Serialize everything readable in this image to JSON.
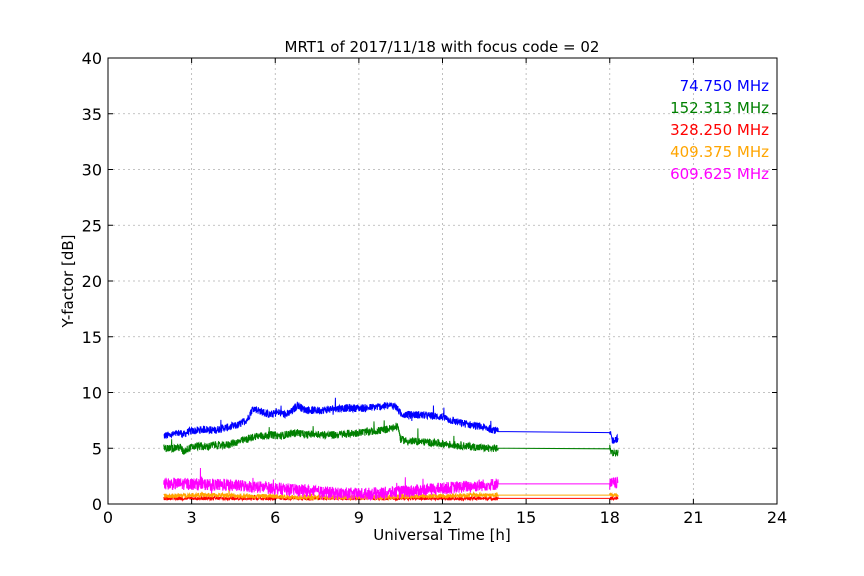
{
  "chart_data": {
    "type": "line",
    "title": "MRT1 of 2017/11/18 with focus code = 02",
    "xlabel": "Universal Time [h]",
    "ylabel": "Y-factor [dB]",
    "xlim": [
      0,
      24
    ],
    "ylim": [
      0,
      40
    ],
    "xticks": [
      0,
      3,
      6,
      9,
      12,
      15,
      18,
      21,
      24
    ],
    "yticks": [
      0,
      5,
      10,
      15,
      20,
      25,
      30,
      35,
      40
    ],
    "grid": true,
    "legend_position": "top-right",
    "series": [
      {
        "name": "74.750 MHz",
        "color": "#0000ff",
        "points": [
          [
            2.0,
            6.1
          ],
          [
            2.3,
            6.2
          ],
          [
            2.6,
            6.4
          ],
          [
            2.7,
            6.2
          ],
          [
            2.9,
            6.5
          ],
          [
            3.2,
            6.6
          ],
          [
            3.5,
            6.7
          ],
          [
            3.8,
            6.6
          ],
          [
            4.1,
            6.8
          ],
          [
            4.4,
            6.9
          ],
          [
            4.7,
            7.1
          ],
          [
            5.0,
            7.6
          ],
          [
            5.2,
            8.6
          ],
          [
            5.5,
            8.3
          ],
          [
            5.8,
            8.0
          ],
          [
            6.1,
            8.2
          ],
          [
            6.4,
            8.0
          ],
          [
            6.6,
            8.3
          ],
          [
            6.8,
            8.9
          ],
          [
            7.0,
            8.5
          ],
          [
            7.3,
            8.4
          ],
          [
            7.6,
            8.4
          ],
          [
            8.0,
            8.5
          ],
          [
            8.4,
            8.6
          ],
          [
            8.8,
            8.6
          ],
          [
            9.2,
            8.6
          ],
          [
            9.6,
            8.7
          ],
          [
            10.0,
            8.8
          ],
          [
            10.3,
            8.8
          ],
          [
            10.5,
            8.1
          ],
          [
            10.8,
            8.0
          ],
          [
            11.2,
            8.0
          ],
          [
            11.6,
            7.9
          ],
          [
            12.0,
            7.8
          ],
          [
            12.3,
            7.5
          ],
          [
            12.6,
            7.3
          ],
          [
            13.0,
            7.1
          ],
          [
            13.4,
            6.9
          ],
          [
            13.8,
            6.7
          ],
          [
            14.0,
            6.5
          ],
          [
            18.0,
            6.4
          ],
          [
            18.1,
            5.7
          ],
          [
            18.3,
            5.9
          ]
        ],
        "noise": 0.35
      },
      {
        "name": "152.313 MHz",
        "color": "#008000",
        "points": [
          [
            2.0,
            5.0
          ],
          [
            2.3,
            5.0
          ],
          [
            2.6,
            5.1
          ],
          [
            2.7,
            4.7
          ],
          [
            2.9,
            5.0
          ],
          [
            3.2,
            5.2
          ],
          [
            3.5,
            5.1
          ],
          [
            3.8,
            5.3
          ],
          [
            4.1,
            5.2
          ],
          [
            4.4,
            5.4
          ],
          [
            4.7,
            5.6
          ],
          [
            5.0,
            5.8
          ],
          [
            5.3,
            6.1
          ],
          [
            5.6,
            6.1
          ],
          [
            5.9,
            6.2
          ],
          [
            6.2,
            6.1
          ],
          [
            6.5,
            6.3
          ],
          [
            6.8,
            6.4
          ],
          [
            7.1,
            6.2
          ],
          [
            7.4,
            6.3
          ],
          [
            7.8,
            6.2
          ],
          [
            8.2,
            6.2
          ],
          [
            8.6,
            6.3
          ],
          [
            9.0,
            6.4
          ],
          [
            9.4,
            6.5
          ],
          [
            9.8,
            6.6
          ],
          [
            10.2,
            6.8
          ],
          [
            10.4,
            7.0
          ],
          [
            10.5,
            5.8
          ],
          [
            10.8,
            5.6
          ],
          [
            11.2,
            5.6
          ],
          [
            11.6,
            5.5
          ],
          [
            12.0,
            5.4
          ],
          [
            12.4,
            5.3
          ],
          [
            12.8,
            5.2
          ],
          [
            13.2,
            5.1
          ],
          [
            13.6,
            5.0
          ],
          [
            14.0,
            5.0
          ],
          [
            18.0,
            4.95
          ],
          [
            18.1,
            4.6
          ],
          [
            18.3,
            4.6
          ]
        ],
        "noise": 0.35
      },
      {
        "name": "328.250 MHz",
        "color": "#ff0000",
        "points": [
          [
            2.0,
            0.5
          ],
          [
            3.0,
            0.5
          ],
          [
            4.0,
            0.5
          ],
          [
            5.0,
            0.5
          ],
          [
            6.0,
            0.5
          ],
          [
            7.0,
            0.5
          ],
          [
            8.0,
            0.5
          ],
          [
            9.0,
            0.5
          ],
          [
            10.0,
            0.5
          ],
          [
            11.0,
            0.5
          ],
          [
            12.0,
            0.5
          ],
          [
            13.0,
            0.5
          ],
          [
            14.0,
            0.5
          ],
          [
            18.0,
            0.5
          ],
          [
            18.3,
            0.5
          ]
        ],
        "noise": 0.15
      },
      {
        "name": "409.375 MHz",
        "color": "#ffa500",
        "points": [
          [
            2.0,
            0.7
          ],
          [
            3.0,
            0.8
          ],
          [
            4.0,
            0.8
          ],
          [
            5.0,
            0.7
          ],
          [
            6.0,
            0.7
          ],
          [
            7.0,
            0.6
          ],
          [
            8.0,
            0.6
          ],
          [
            9.0,
            0.6
          ],
          [
            10.0,
            0.6
          ],
          [
            11.0,
            0.7
          ],
          [
            12.0,
            0.7
          ],
          [
            13.0,
            0.8
          ],
          [
            14.0,
            0.8
          ],
          [
            18.0,
            0.8
          ],
          [
            18.3,
            0.8
          ]
        ],
        "noise": 0.2
      },
      {
        "name": "609.625 MHz",
        "color": "#ff00ff",
        "points": [
          [
            2.0,
            1.8
          ],
          [
            3.0,
            1.8
          ],
          [
            4.0,
            1.7
          ],
          [
            5.0,
            1.6
          ],
          [
            6.0,
            1.4
          ],
          [
            7.0,
            1.2
          ],
          [
            8.0,
            1.0
          ],
          [
            9.0,
            0.9
          ],
          [
            10.0,
            1.0
          ],
          [
            11.0,
            1.2
          ],
          [
            12.0,
            1.4
          ],
          [
            13.0,
            1.6
          ],
          [
            14.0,
            1.8
          ],
          [
            18.0,
            1.8
          ],
          [
            18.3,
            1.9
          ]
        ],
        "noise": 0.55
      }
    ]
  }
}
